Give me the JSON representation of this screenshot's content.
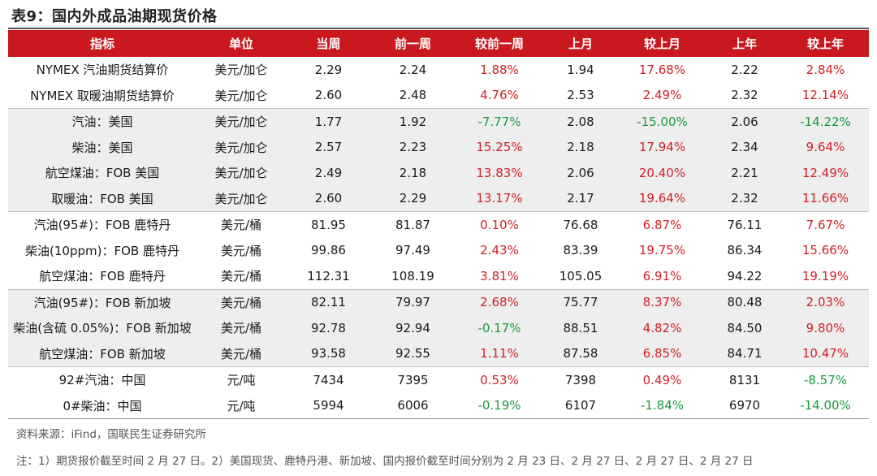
{
  "title": "表9：国内外成品油期现货价格",
  "headers": [
    "指标",
    "单位",
    "当周",
    "前一周",
    "较前一周",
    "上月",
    "较上月",
    "上年",
    "较上年"
  ],
  "rows": [
    {
      "name": "NYMEX 汽油期货结算价",
      "unit": "美元/加仑",
      "cur": "2.29",
      "prev": "2.24",
      "chg_w": "1.88%",
      "month": "1.94",
      "chg_m": "17.68%",
      "year": "2.22",
      "chg_y": "2.84%",
      "shade": false,
      "end": false
    },
    {
      "name": "NYMEX 取暖油期货结算价",
      "unit": "美元/加仑",
      "cur": "2.60",
      "prev": "2.48",
      "chg_w": "4.76%",
      "month": "2.53",
      "chg_m": "2.49%",
      "year": "2.32",
      "chg_y": "12.14%",
      "shade": false,
      "end": true
    },
    {
      "name": "汽油：美国",
      "unit": "美元/加仑",
      "cur": "1.77",
      "prev": "1.92",
      "chg_w": "-7.77%",
      "month": "2.08",
      "chg_m": "-15.00%",
      "year": "2.06",
      "chg_y": "-14.22%",
      "shade": true,
      "end": false
    },
    {
      "name": "柴油：美国",
      "unit": "美元/加仑",
      "cur": "2.57",
      "prev": "2.23",
      "chg_w": "15.25%",
      "month": "2.18",
      "chg_m": "17.94%",
      "year": "2.34",
      "chg_y": "9.64%",
      "shade": true,
      "end": false
    },
    {
      "name": "航空煤油：FOB 美国",
      "unit": "美元/加仑",
      "cur": "2.49",
      "prev": "2.18",
      "chg_w": "13.83%",
      "month": "2.06",
      "chg_m": "20.40%",
      "year": "2.21",
      "chg_y": "12.49%",
      "shade": true,
      "end": false
    },
    {
      "name": "取暖油：FOB 美国",
      "unit": "美元/加仑",
      "cur": "2.60",
      "prev": "2.29",
      "chg_w": "13.17%",
      "month": "2.17",
      "chg_m": "19.64%",
      "year": "2.32",
      "chg_y": "11.66%",
      "shade": true,
      "end": true
    },
    {
      "name": "汽油(95#)：FOB 鹿特丹",
      "unit": "美元/桶",
      "cur": "81.95",
      "prev": "81.87",
      "chg_w": "0.10%",
      "month": "76.68",
      "chg_m": "6.87%",
      "year": "76.11",
      "chg_y": "7.67%",
      "shade": false,
      "end": false
    },
    {
      "name": "柴油(10ppm)：FOB 鹿特丹",
      "unit": "美元/桶",
      "cur": "99.86",
      "prev": "97.49",
      "chg_w": "2.43%",
      "month": "83.39",
      "chg_m": "19.75%",
      "year": "86.34",
      "chg_y": "15.66%",
      "shade": false,
      "end": false
    },
    {
      "name": "航空煤油：FOB 鹿特丹",
      "unit": "美元/桶",
      "cur": "112.31",
      "prev": "108.19",
      "chg_w": "3.81%",
      "month": "105.05",
      "chg_m": "6.91%",
      "year": "94.22",
      "chg_y": "19.19%",
      "shade": false,
      "end": true
    },
    {
      "name": "汽油(95#)：FOB 新加坡",
      "unit": "美元/桶",
      "cur": "82.11",
      "prev": "79.97",
      "chg_w": "2.68%",
      "month": "75.77",
      "chg_m": "8.37%",
      "year": "80.48",
      "chg_y": "2.03%",
      "shade": true,
      "end": false
    },
    {
      "name": "柴油(含硫 0.05%)：FOB 新加坡",
      "unit": "美元/桶",
      "cur": "92.78",
      "prev": "92.94",
      "chg_w": "-0.17%",
      "month": "88.51",
      "chg_m": "4.82%",
      "year": "84.50",
      "chg_y": "9.80%",
      "shade": true,
      "end": false
    },
    {
      "name": "航空煤油：FOB 新加坡",
      "unit": "美元/桶",
      "cur": "93.58",
      "prev": "92.55",
      "chg_w": "1.11%",
      "month": "87.58",
      "chg_m": "6.85%",
      "year": "84.71",
      "chg_y": "10.47%",
      "shade": true,
      "end": true
    },
    {
      "name": "92#汽油：中国",
      "unit": "元/吨",
      "cur": "7434",
      "prev": "7395",
      "chg_w": "0.53%",
      "month": "7398",
      "chg_m": "0.49%",
      "year": "8131",
      "chg_y": "-8.57%",
      "shade": false,
      "end": false
    },
    {
      "name": "0#柴油：中国",
      "unit": "元/吨",
      "cur": "5994",
      "prev": "6006",
      "chg_w": "-0.19%",
      "month": "6107",
      "chg_m": "-1.84%",
      "year": "6970",
      "chg_y": "-14.00%",
      "shade": false,
      "end": true
    }
  ],
  "colors": {
    "header_bg": "#c9191f",
    "positive": "#d11f26",
    "negative": "#1a9a3e",
    "shade": "#eeeeee"
  },
  "source": "资料来源：iFind，国联民生证券研究所",
  "note": "注：1）期货报价截至时间 2 月 27 日。2）美国现货、鹿特丹港、新加坡、国内报价截至时间分别为 2 月 23 日、2 月 27 日、2 月 27 日、2 月 27 日"
}
